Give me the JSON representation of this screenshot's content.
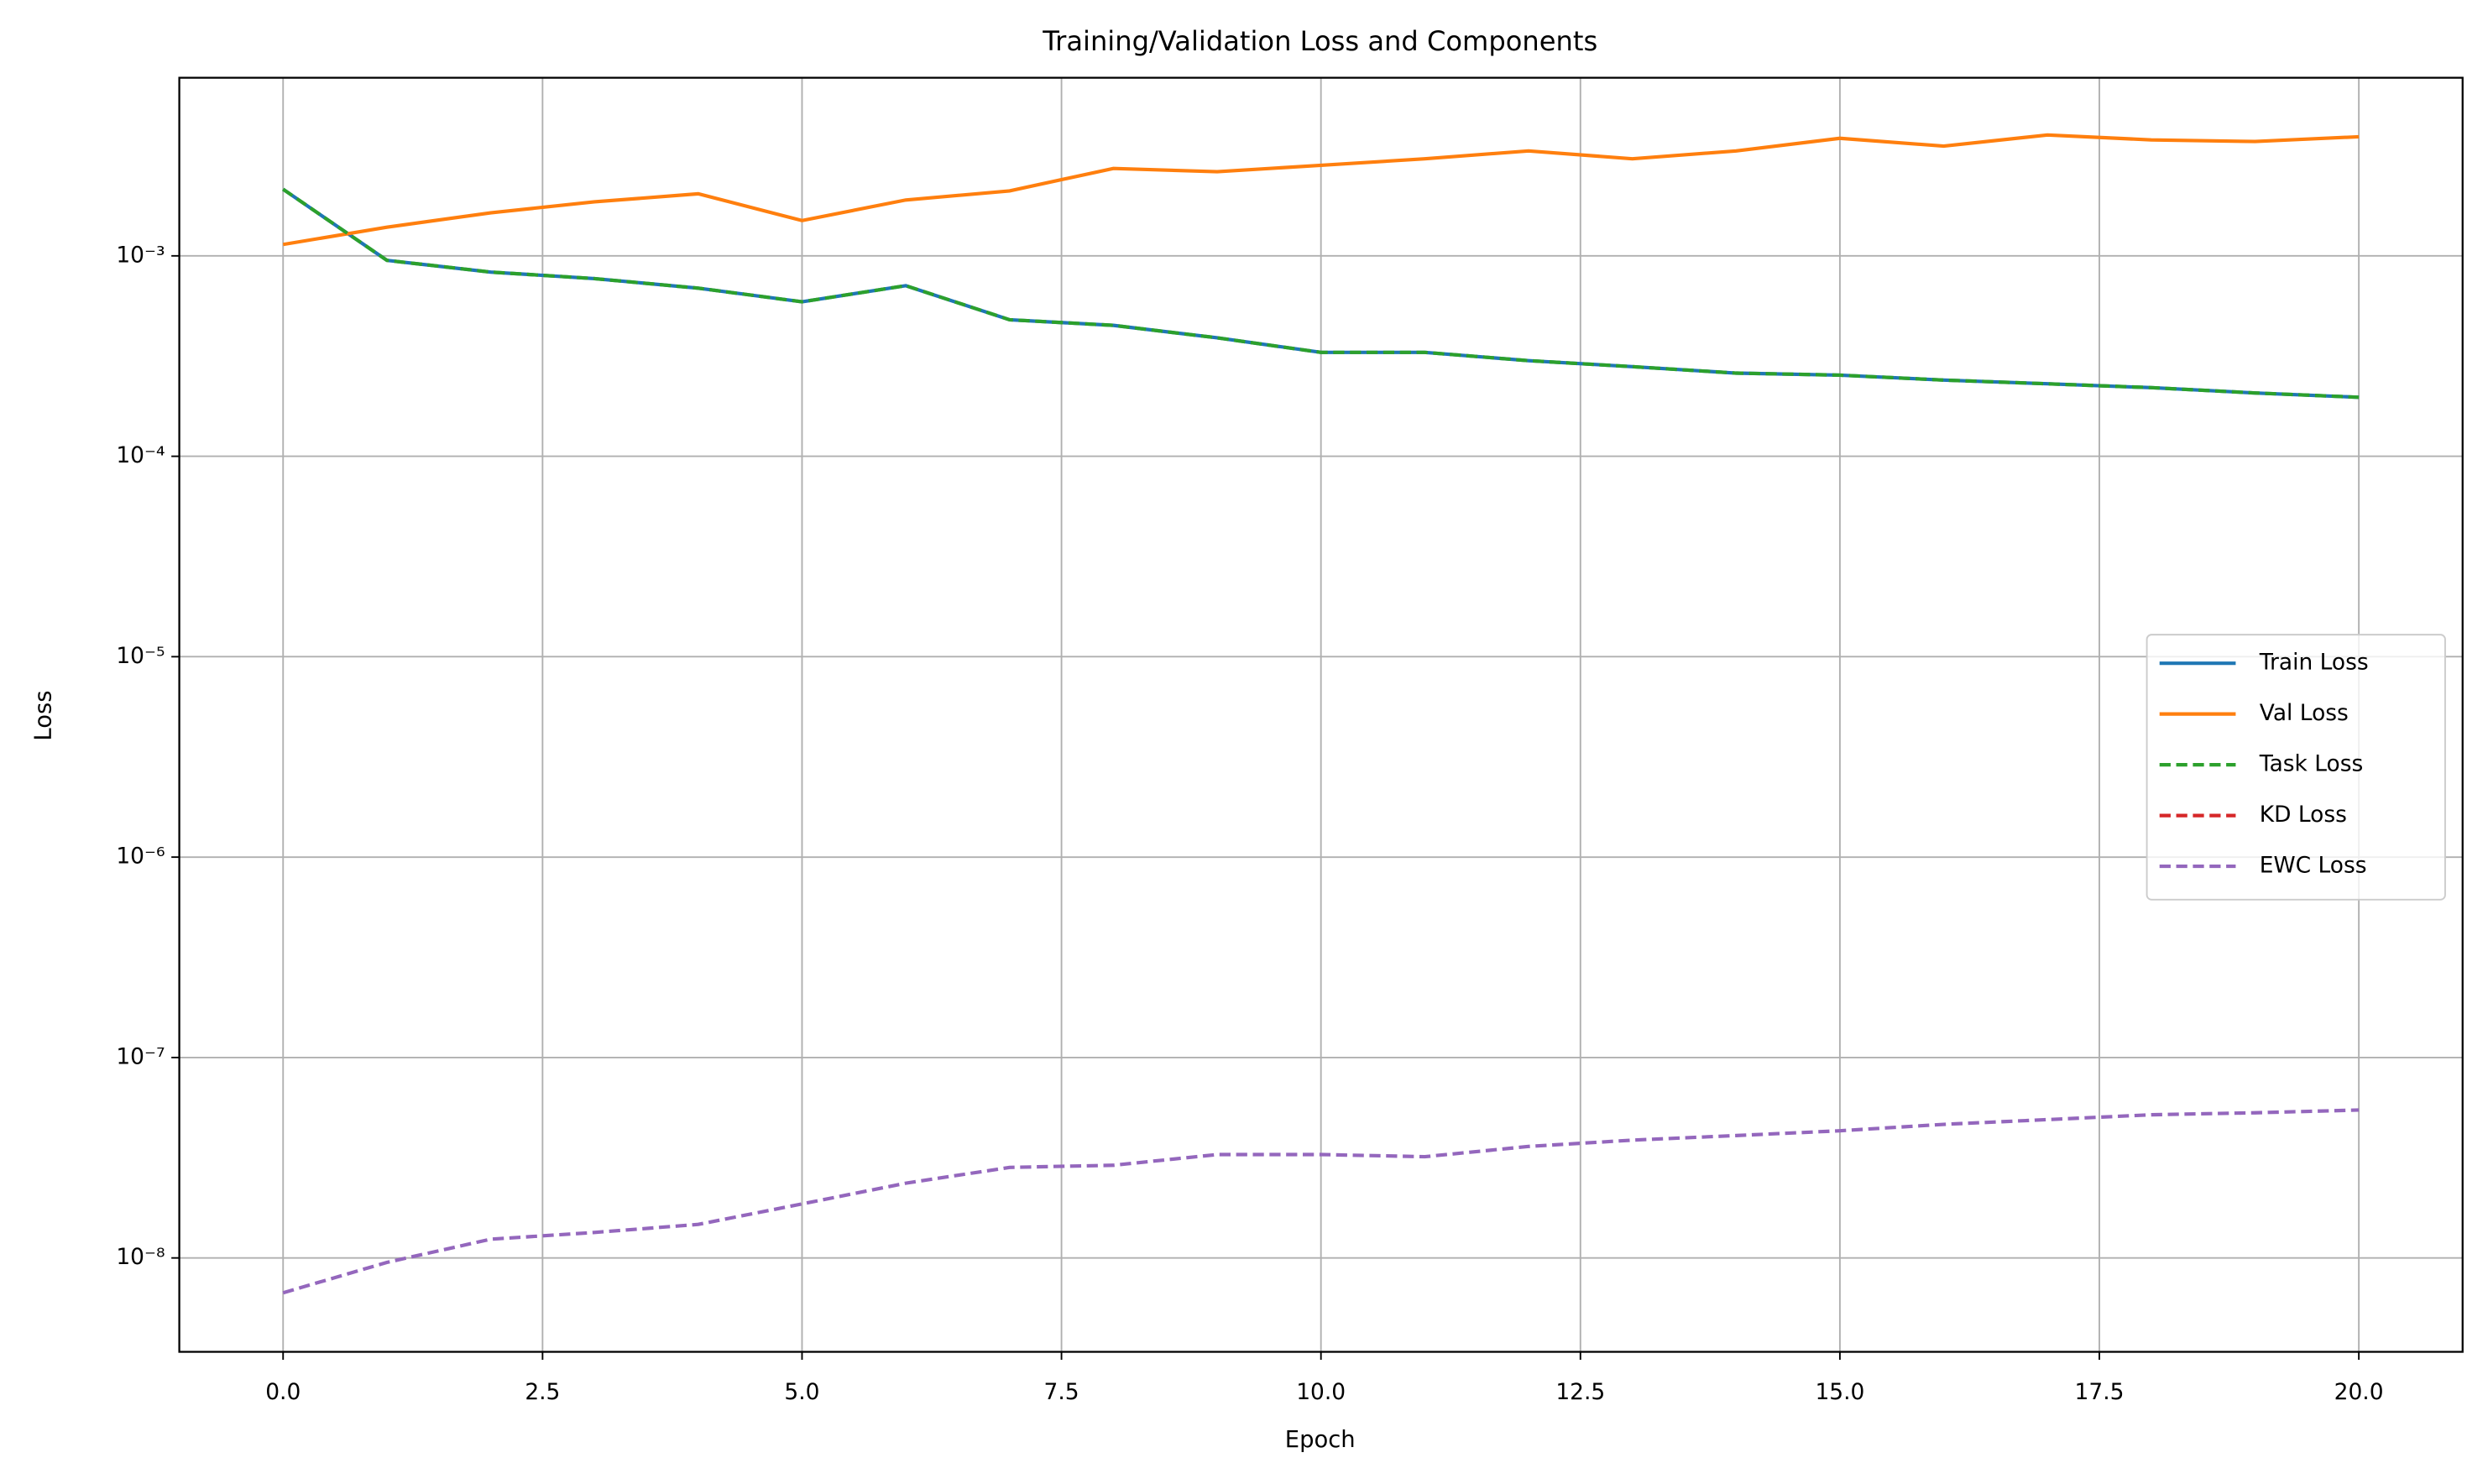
{
  "chart_data": {
    "type": "line",
    "title": "Training/Validation Loss and Components",
    "xlabel": "Epoch",
    "ylabel": "Loss",
    "x": [
      0,
      1,
      2,
      3,
      4,
      5,
      6,
      7,
      8,
      9,
      10,
      11,
      12,
      13,
      14,
      15,
      16,
      17,
      18,
      19,
      20
    ],
    "xlim": [
      -1,
      21
    ],
    "xticks": [
      {
        "value": 0,
        "label": "0.0"
      },
      2.5,
      {
        "value": 5,
        "label": "5.0"
      },
      7.5,
      {
        "value": 10,
        "label": "10.0"
      },
      12.5,
      {
        "value": 15,
        "label": "15.0"
      },
      17.5,
      {
        "value": 20,
        "label": "20.0"
      }
    ],
    "ylim": [
      3.4e-09,
      0.00774
    ],
    "yscale": "log",
    "yticks": [
      {
        "value": 1e-08,
        "label": "10⁻⁸"
      },
      {
        "value": 1e-07,
        "label": "10⁻⁷"
      },
      {
        "value": 1e-06,
        "label": "10⁻⁶"
      },
      {
        "value": 1e-05,
        "label": "10⁻⁵"
      },
      {
        "value": 0.0001,
        "label": "10⁻⁴"
      },
      {
        "value": 0.001,
        "label": "10⁻³"
      }
    ],
    "grid": true,
    "legend": "center right",
    "series": [
      {
        "name": "Train Loss",
        "color": "#1f77b4",
        "linestyle": "solid",
        "values": [
          0.00215,
          0.00095,
          0.00083,
          0.00077,
          0.00069,
          0.00059,
          0.00071,
          0.00048,
          0.00045,
          0.00039,
          0.00033,
          0.00033,
          0.0003,
          0.00028,
          0.00026,
          0.000254,
          0.00024,
          0.00023,
          0.00022,
          0.000207,
          0.000197
        ]
      },
      {
        "name": "Val Loss",
        "color": "#ff7f0e",
        "linestyle": "solid",
        "values": [
          0.00114,
          0.00139,
          0.00164,
          0.00186,
          0.00204,
          0.0015,
          0.0019,
          0.00211,
          0.00273,
          0.00263,
          0.00283,
          0.00305,
          0.00334,
          0.00305,
          0.00334,
          0.00386,
          0.00353,
          0.00401,
          0.00379,
          0.00372,
          0.00393
        ]
      },
      {
        "name": "Task Loss",
        "color": "#2ca02c",
        "linestyle": "dashed",
        "values": [
          0.00215,
          0.00095,
          0.00083,
          0.00077,
          0.00069,
          0.00059,
          0.00071,
          0.00048,
          0.00045,
          0.00039,
          0.00033,
          0.00033,
          0.0003,
          0.00028,
          0.00026,
          0.000254,
          0.00024,
          0.00023,
          0.00022,
          0.000207,
          0.000197
        ]
      },
      {
        "name": "KD Loss",
        "color": "#d62728",
        "linestyle": "dashed",
        "values": [
          null,
          null,
          null,
          null,
          null,
          null,
          null,
          null,
          null,
          null,
          null,
          null,
          null,
          null,
          null,
          null,
          null,
          null,
          null,
          null,
          null
        ]
      },
      {
        "name": "EWC Loss",
        "color": "#9467bd",
        "linestyle": "dashed",
        "values": [
          6.7e-09,
          9.5e-09,
          1.24e-08,
          1.34e-08,
          1.47e-08,
          1.86e-08,
          2.36e-08,
          2.83e-08,
          2.9e-08,
          3.28e-08,
          3.28e-08,
          3.2e-08,
          3.6e-08,
          3.87e-08,
          4.08e-08,
          4.31e-08,
          4.64e-08,
          4.9e-08,
          5.18e-08,
          5.3e-08,
          5.47e-08
        ]
      }
    ]
  }
}
